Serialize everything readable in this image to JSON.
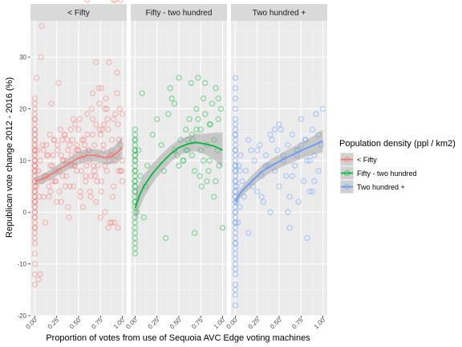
{
  "chart_data": {
    "type": "scatter",
    "title": "",
    "xlabel": "Proportion of votes from use of Sequoia AVC Edge voting machines",
    "ylabel": "Republican vote change 2012 - 2016 (%)",
    "xlim": [
      0,
      1
    ],
    "ylim": [
      -20,
      37
    ],
    "x_ticks": [
      "0.00",
      "0.25",
      "0.50",
      "0.75",
      "1.00"
    ],
    "x_tick_values": [
      0,
      0.25,
      0.5,
      0.75,
      1.0
    ],
    "y_ticks": [
      "-20",
      "-10",
      "0",
      "10",
      "20",
      "30"
    ],
    "y_tick_values": [
      -20,
      -10,
      0,
      10,
      20,
      30
    ],
    "grid": true,
    "legend": {
      "title": "Population density (ppl / km2)",
      "position": "right"
    },
    "series": [
      {
        "name": "< Fifty",
        "panel": "< Fifty",
        "color": "#F8766D",
        "smooth": {
          "x": [
            0,
            0.1,
            0.2,
            0.3,
            0.4,
            0.5,
            0.6,
            0.7,
            0.8,
            0.9,
            1.0
          ],
          "y": [
            6,
            6.5,
            7.5,
            8.5,
            9.5,
            10.5,
            11,
            11,
            10.5,
            11,
            12.5
          ]
        },
        "ribbon_halfwidth": [
          0.8,
          0.9,
          1,
          1.1,
          1.1,
          1.2,
          1.2,
          1.2,
          1.3,
          1.6,
          2.2
        ],
        "points_x": [
          0,
          0,
          0,
          0,
          0,
          0,
          0,
          0,
          0,
          0,
          0,
          0,
          0,
          0,
          0,
          0,
          0,
          0,
          0,
          0,
          0,
          0,
          0,
          0,
          0,
          0,
          0,
          0,
          0,
          0,
          0,
          0,
          0,
          0,
          0,
          0,
          0,
          0,
          0,
          0,
          0,
          0,
          0,
          0,
          0,
          0,
          0,
          0,
          0,
          0,
          0,
          0,
          0,
          0,
          0,
          0,
          0,
          0,
          0,
          0,
          0.02,
          0.04,
          0.05,
          0.06,
          0.08,
          0.1,
          0.12,
          0.14,
          0.15,
          0.18,
          0.2,
          0.22,
          0.24,
          0.26,
          0.28,
          0.3,
          0.32,
          0.34,
          0.36,
          0.38,
          0.4,
          0.42,
          0.44,
          0.46,
          0.48,
          0.5,
          0.52,
          0.54,
          0.56,
          0.58,
          0.6,
          0.62,
          0.64,
          0.66,
          0.68,
          0.7,
          0.72,
          0.74,
          0.76,
          0.78,
          0.8,
          0.82,
          0.84,
          0.86,
          0.88,
          0.9,
          0.92,
          0.94,
          0.96,
          0.98,
          1,
          0.03,
          0.07,
          0.11,
          0.16,
          0.21,
          0.25,
          0.31,
          0.35,
          0.41,
          0.45,
          0.51,
          0.55,
          0.61,
          0.65,
          0.71,
          0.75,
          0.81,
          0.85,
          0.91,
          0.95,
          0.99,
          0.13,
          0.27,
          0.37,
          0.47,
          0.57,
          0.67,
          0.77,
          0.87,
          0.97,
          0.83,
          0.73,
          0.63,
          0.53,
          0.43,
          0.33,
          0.23,
          0.17,
          0.09,
          0.89,
          0.93,
          0.79,
          0.69,
          0.59,
          0.49,
          0.39,
          0.29,
          0.19,
          1.0,
          1.0,
          0.98,
          0.96,
          0.94,
          0.92,
          0.9,
          0.88,
          0.86,
          0.84,
          0.82,
          0.8,
          0.78,
          0.76,
          0.74,
          0.72,
          0.7,
          0.68,
          0.66,
          0.64,
          0.62,
          0.6,
          0.58,
          0.56,
          0.54,
          0.52,
          0.5,
          0.48,
          0.46,
          0.44,
          0.42,
          0.4,
          0.38,
          0.36,
          0.34,
          0.32,
          0.3,
          0.28,
          0.26,
          0.24,
          0.22,
          0.2,
          0.18,
          0.16,
          0.14,
          0.12,
          0.1,
          0.08,
          0.06,
          0.04,
          0.02,
          0.85,
          0.88,
          0.76,
          0.95,
          0.66,
          0.7,
          0.8,
          0.75,
          0.92,
          0.98,
          0.6,
          0.9
        ],
        "points_y": [
          -14,
          -12,
          -10,
          -8,
          -6,
          -4,
          -3,
          -2,
          -1,
          0,
          1,
          2,
          3,
          4,
          5,
          6,
          7,
          8,
          9,
          10,
          11,
          12,
          13,
          14,
          15,
          16,
          17,
          18,
          19,
          20,
          21,
          22,
          -5,
          -3,
          0,
          2,
          4,
          6,
          8,
          10,
          12,
          14,
          16,
          18,
          5,
          7,
          9,
          11,
          13,
          15,
          3,
          1,
          -1,
          6,
          8,
          10,
          12,
          4,
          2,
          9,
          5,
          8,
          3,
          10,
          6,
          12,
          -2,
          7,
          11,
          4,
          9,
          14,
          6,
          13,
          8,
          2,
          10,
          15,
          7,
          12,
          5,
          11,
          18,
          9,
          13,
          16,
          4,
          10,
          14,
          7,
          19,
          12,
          3,
          15,
          8,
          17,
          11,
          21,
          6,
          13,
          9,
          20,
          16,
          -2,
          12,
          18,
          10,
          23,
          14,
          8,
          19,
          12,
          30,
          7,
          3,
          11,
          2,
          14,
          5,
          16,
          9,
          18,
          1,
          12,
          20,
          6,
          15,
          22,
          10,
          -2,
          17,
          8,
          13,
          25,
          14,
          12,
          13,
          9,
          16,
          11,
          20,
          18,
          24,
          4,
          8,
          14,
          10,
          6,
          15,
          13,
          3,
          11,
          17,
          7,
          9,
          12,
          -1,
          16,
          21,
          6,
          10,
          13,
          8,
          27,
          19,
          5,
          14,
          11,
          -3,
          8,
          20,
          12,
          4,
          16,
          9,
          2,
          13,
          18,
          7,
          10,
          15,
          6,
          11,
          14,
          3,
          12,
          8,
          17,
          5,
          9,
          13,
          1,
          10,
          15,
          7,
          11,
          4,
          12,
          8,
          14,
          6,
          9,
          5,
          11,
          7,
          3,
          36,
          -12,
          -13,
          26,
          29,
          -2,
          24,
          -3,
          23,
          29,
          0,
          -1
        ]
      },
      {
        "name": "Fifty - two hundred",
        "panel": "Fifty - two hundred",
        "color": "#00BA38",
        "smooth": {
          "x": [
            0,
            0.05,
            0.1,
            0.2,
            0.3,
            0.4,
            0.5,
            0.6,
            0.7,
            0.8,
            0.9,
            1.0
          ],
          "y": [
            0.8,
            3.2,
            5,
            7.5,
            9.5,
            11.2,
            12.5,
            13.2,
            13.5,
            13.2,
            12.8,
            12
          ]
        },
        "ribbon_halfwidth": [
          2.8,
          2.5,
          2.2,
          1.9,
          1.7,
          1.6,
          1.5,
          1.5,
          1.7,
          2.0,
          2.6,
          3.4
        ],
        "points_x": [
          0,
          0,
          0,
          0,
          0,
          0,
          0,
          0,
          0,
          0,
          0,
          0,
          0,
          0,
          0,
          0,
          0,
          0,
          0,
          0,
          0,
          0,
          0,
          0,
          0,
          0,
          0,
          0,
          0,
          0,
          0,
          0,
          0,
          0,
          0.02,
          0.04,
          0.06,
          0.08,
          0.1,
          0.12,
          0.14,
          0.2,
          0.25,
          0.3,
          0.35,
          0.4,
          0.42,
          0.45,
          0.48,
          0.5,
          0.52,
          0.55,
          0.58,
          0.6,
          0.62,
          0.64,
          0.65,
          0.66,
          0.68,
          0.7,
          0.72,
          0.74,
          0.75,
          0.76,
          0.78,
          0.8,
          0.82,
          0.84,
          0.85,
          0.86,
          0.88,
          0.9,
          0.92,
          0.94,
          0.95,
          0.96,
          0.98,
          1.0,
          0.7,
          0.8,
          0.9,
          0.6,
          0.5,
          0.45,
          0.75,
          0.85,
          0.95,
          0.65,
          0.55,
          0.33,
          0.38,
          0.72,
          0.82,
          0.92,
          0.78,
          0.68,
          0.58
        ],
        "points_y": [
          -8,
          -6,
          -4,
          -2,
          -1,
          0,
          1,
          2,
          3,
          4,
          5,
          6,
          7,
          8,
          9,
          10,
          11,
          12,
          13,
          14,
          15,
          16,
          -3,
          -5,
          2,
          4,
          6,
          8,
          10,
          12,
          14,
          -7,
          11,
          5,
          0,
          12,
          7,
          23,
          -1,
          5,
          9,
          15,
          18,
          13,
          -5,
          24,
          22,
          12,
          11,
          26,
          14,
          10,
          16,
          12,
          18,
          25,
          11,
          14,
          8,
          20,
          26,
          7,
          16,
          5,
          22,
          19,
          13,
          8,
          10,
          17,
          21,
          14,
          6,
          12,
          18,
          9,
          20,
          -3,
          16,
          25,
          3,
          14,
          9,
          21,
          12,
          17,
          22,
          15,
          10,
          8,
          19,
          18,
          6,
          24,
          10,
          -4,
          12
        ]
      },
      {
        "name": "Two hundred +",
        "panel": "Two hundred +",
        "color": "#619CFF",
        "smooth": {
          "x": [
            0,
            0.05,
            0.1,
            0.2,
            0.3,
            0.4,
            0.5,
            0.6,
            0.7,
            0.8,
            0.9,
            1.0
          ],
          "y": [
            2,
            3.5,
            4.5,
            6.2,
            7.8,
            8.9,
            9.8,
            10.7,
            11.5,
            12.3,
            13,
            13.8
          ]
        },
        "ribbon_halfwidth": [
          0.8,
          0.9,
          1.0,
          1.1,
          1.2,
          1.3,
          1.3,
          1.4,
          1.5,
          1.6,
          1.8,
          2.2
        ],
        "points_x": [
          0,
          0,
          0,
          0,
          0,
          0,
          0,
          0,
          0,
          0,
          0,
          0,
          0,
          0,
          0,
          0,
          0,
          0,
          0,
          0,
          0,
          0,
          0,
          0,
          0,
          0,
          0,
          0,
          0,
          0,
          0,
          0,
          0,
          0,
          0,
          0,
          0,
          0,
          0,
          0,
          0,
          0,
          0,
          0,
          0,
          0,
          0,
          0,
          0,
          0.01,
          0.02,
          0.03,
          0.04,
          0.05,
          0.06,
          0.08,
          0.1,
          0.12,
          0.15,
          0.18,
          0.2,
          0.22,
          0.25,
          0.28,
          0.3,
          0.32,
          0.35,
          0.38,
          0.4,
          0.42,
          0.45,
          0.48,
          0.5,
          0.52,
          0.55,
          0.58,
          0.6,
          0.62,
          0.65,
          0.68,
          0.7,
          0.72,
          0.75,
          0.78,
          0.8,
          0.82,
          0.85,
          0.88,
          0.9,
          0.92,
          0.95,
          0.98,
          1.0,
          0.3,
          0.4,
          0.5,
          0.6,
          0.7,
          0.8,
          0.9,
          0.35,
          0.45,
          0.55,
          0.65,
          0.75,
          0.85,
          0.95,
          0.05,
          0.15,
          0.25,
          0.62,
          0.72,
          0.82,
          0.88
        ],
        "points_y": [
          -18,
          -16,
          -14,
          -12,
          -10,
          -9,
          -8,
          -7,
          -6,
          -5,
          -4,
          -3,
          -2,
          -1,
          0,
          1,
          2,
          3,
          4,
          5,
          6,
          7,
          8,
          9,
          10,
          11,
          12,
          13,
          14,
          15,
          16,
          17,
          18,
          20,
          22,
          24,
          26,
          -15,
          -11,
          -6,
          0,
          3,
          6,
          9,
          12,
          15,
          -2,
          4,
          8,
          2,
          5,
          -2,
          9,
          1,
          11,
          6,
          3,
          8,
          -4,
          12,
          5,
          10,
          4,
          13,
          7,
          2,
          11,
          9,
          0,
          14,
          8,
          12,
          5,
          16,
          10,
          7,
          13,
          3,
          15,
          9,
          11,
          12,
          18,
          6,
          14,
          10,
          4,
          16,
          11,
          19,
          8,
          13,
          20,
          3,
          15,
          17,
          0,
          12,
          14,
          6,
          9,
          16,
          11,
          7,
          13,
          10,
          15,
          8,
          14,
          12,
          -3,
          2,
          -5,
          4,
          20,
          19,
          21
        ]
      }
    ]
  }
}
